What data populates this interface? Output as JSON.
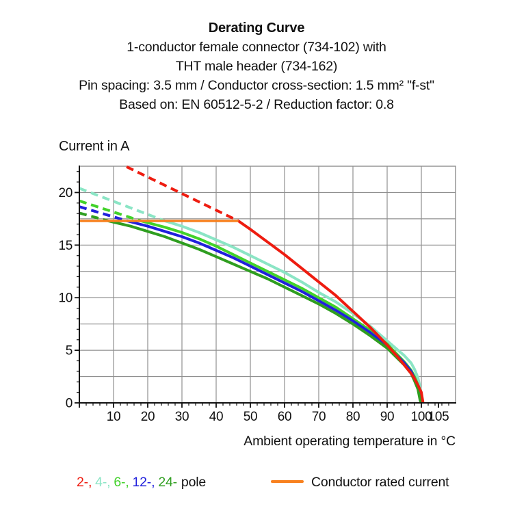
{
  "title": {
    "heading": "Derating Curve",
    "lines": [
      "1-conductor female connector (734-102) with",
      "THT male header (734-162)",
      "Pin spacing: 3.5 mm / Conductor cross-section: 1.5 mm² \"f-st\"",
      "Based on: EN 60512-5-2 / Reduction factor: 0.8"
    ]
  },
  "chart_data": {
    "type": "line",
    "title": "Derating Curve",
    "xlabel": "Ambient operating temperature in °C",
    "ylabel": "Current in A",
    "xlim": [
      0,
      110
    ],
    "ylim": [
      0,
      22.5
    ],
    "x_ticks": [
      10,
      20,
      30,
      40,
      50,
      60,
      70,
      80,
      90,
      100,
      105
    ],
    "y_ticks": [
      0,
      5,
      10,
      15,
      20
    ],
    "grid": {
      "x_step": 10,
      "y_step": 2.5,
      "color": "#8f8f8f"
    },
    "minor_ticks": {
      "x_step": 2,
      "y_step": 1
    },
    "axis_color": "#111111",
    "rated_current": {
      "label": "Conductor rated current",
      "value_a": 17.3,
      "x_start": 0,
      "x_end": 46.5,
      "color": "#f8811f"
    },
    "series": [
      {
        "name": "4-pole",
        "color": "#8be5c5",
        "dashed": [
          [
            0,
            20.4
          ],
          [
            25,
            17.3
          ]
        ],
        "solid": [
          [
            25,
            17.3
          ],
          [
            30,
            16.8
          ],
          [
            35,
            16.2
          ],
          [
            40,
            15.5
          ],
          [
            45,
            14.8
          ],
          [
            50,
            14.0
          ],
          [
            55,
            13.2
          ],
          [
            60,
            12.4
          ],
          [
            65,
            11.5
          ],
          [
            70,
            10.5
          ],
          [
            75,
            9.6
          ],
          [
            80,
            8.5
          ],
          [
            85,
            7.3
          ],
          [
            90,
            5.9
          ],
          [
            95,
            4.5
          ],
          [
            97,
            3.8
          ],
          [
            98,
            3.2
          ],
          [
            99,
            2.4
          ],
          [
            99.8,
            1.2
          ],
          [
            100.4,
            0
          ]
        ]
      },
      {
        "name": "6-pole",
        "color": "#42d22a",
        "dashed": [
          [
            0,
            19.2
          ],
          [
            18,
            17.3
          ]
        ],
        "solid": [
          [
            18,
            17.3
          ],
          [
            25,
            16.7
          ],
          [
            30,
            16.2
          ],
          [
            35,
            15.6
          ],
          [
            40,
            14.9
          ],
          [
            45,
            14.1
          ],
          [
            50,
            13.3
          ],
          [
            55,
            12.5
          ],
          [
            60,
            11.7
          ],
          [
            65,
            10.9
          ],
          [
            70,
            10.0
          ],
          [
            75,
            9.1
          ],
          [
            80,
            8.0
          ],
          [
            85,
            6.9
          ],
          [
            90,
            5.6
          ],
          [
            95,
            3.9
          ],
          [
            97,
            3.1
          ],
          [
            98,
            2.5
          ],
          [
            99,
            1.7
          ],
          [
            99.8,
            0.6
          ],
          [
            100.2,
            0
          ]
        ]
      },
      {
        "name": "12-pole",
        "color": "#2020dc",
        "dashed": [
          [
            0,
            18.65
          ],
          [
            14,
            17.3
          ]
        ],
        "solid": [
          [
            14,
            17.3
          ],
          [
            20,
            16.8
          ],
          [
            25,
            16.3
          ],
          [
            30,
            15.8
          ],
          [
            35,
            15.2
          ],
          [
            40,
            14.5
          ],
          [
            45,
            13.8
          ],
          [
            50,
            13.0
          ],
          [
            55,
            12.2
          ],
          [
            60,
            11.4
          ],
          [
            65,
            10.6
          ],
          [
            70,
            9.7
          ],
          [
            75,
            8.8
          ],
          [
            80,
            7.8
          ],
          [
            85,
            6.7
          ],
          [
            90,
            5.4
          ],
          [
            95,
            3.8
          ],
          [
            97,
            3.0
          ],
          [
            98,
            2.3
          ],
          [
            99,
            1.5
          ],
          [
            99.7,
            0.4
          ],
          [
            100.0,
            0
          ]
        ]
      },
      {
        "name": "24-pole",
        "color": "#2f9e20",
        "dashed": [
          [
            0,
            18.05
          ],
          [
            8.5,
            17.3
          ]
        ],
        "solid": [
          [
            8.5,
            17.3
          ],
          [
            15,
            16.8
          ],
          [
            20,
            16.3
          ],
          [
            25,
            15.8
          ],
          [
            30,
            15.2
          ],
          [
            35,
            14.6
          ],
          [
            40,
            13.9
          ],
          [
            45,
            13.2
          ],
          [
            50,
            12.5
          ],
          [
            55,
            11.8
          ],
          [
            60,
            11.0
          ],
          [
            65,
            10.2
          ],
          [
            70,
            9.4
          ],
          [
            75,
            8.5
          ],
          [
            80,
            7.5
          ],
          [
            85,
            6.4
          ],
          [
            90,
            5.2
          ],
          [
            95,
            3.6
          ],
          [
            97,
            2.8
          ],
          [
            98,
            2.1
          ],
          [
            99,
            1.3
          ],
          [
            99.6,
            0.3
          ],
          [
            99.9,
            0
          ]
        ]
      },
      {
        "name": "2-pole",
        "color": "#ee1c10",
        "dashed": [
          [
            13.8,
            22.45
          ],
          [
            46.5,
            17.3
          ]
        ],
        "solid": [
          [
            46.5,
            17.3
          ],
          [
            50,
            16.5
          ],
          [
            55,
            15.3
          ],
          [
            60,
            14.1
          ],
          [
            65,
            12.8
          ],
          [
            70,
            11.5
          ],
          [
            75,
            10.2
          ],
          [
            80,
            8.7
          ],
          [
            85,
            7.2
          ],
          [
            90,
            5.5
          ],
          [
            93,
            4.4
          ],
          [
            95,
            3.6
          ],
          [
            97,
            2.8
          ],
          [
            98,
            2.3
          ],
          [
            99,
            1.7
          ],
          [
            100,
            1.0
          ],
          [
            100.3,
            0.4
          ],
          [
            100.5,
            0
          ]
        ]
      }
    ],
    "legend": {
      "poles": [
        {
          "label": "2-,",
          "color": "#ee1c10"
        },
        {
          "label": "4-,",
          "color": "#8be5c5"
        },
        {
          "label": "6-,",
          "color": "#42d22a"
        },
        {
          "label": "12-,",
          "color": "#2020dc"
        },
        {
          "label": "24-",
          "color": "#2f9e20"
        }
      ],
      "pole_suffix": "pole"
    }
  }
}
